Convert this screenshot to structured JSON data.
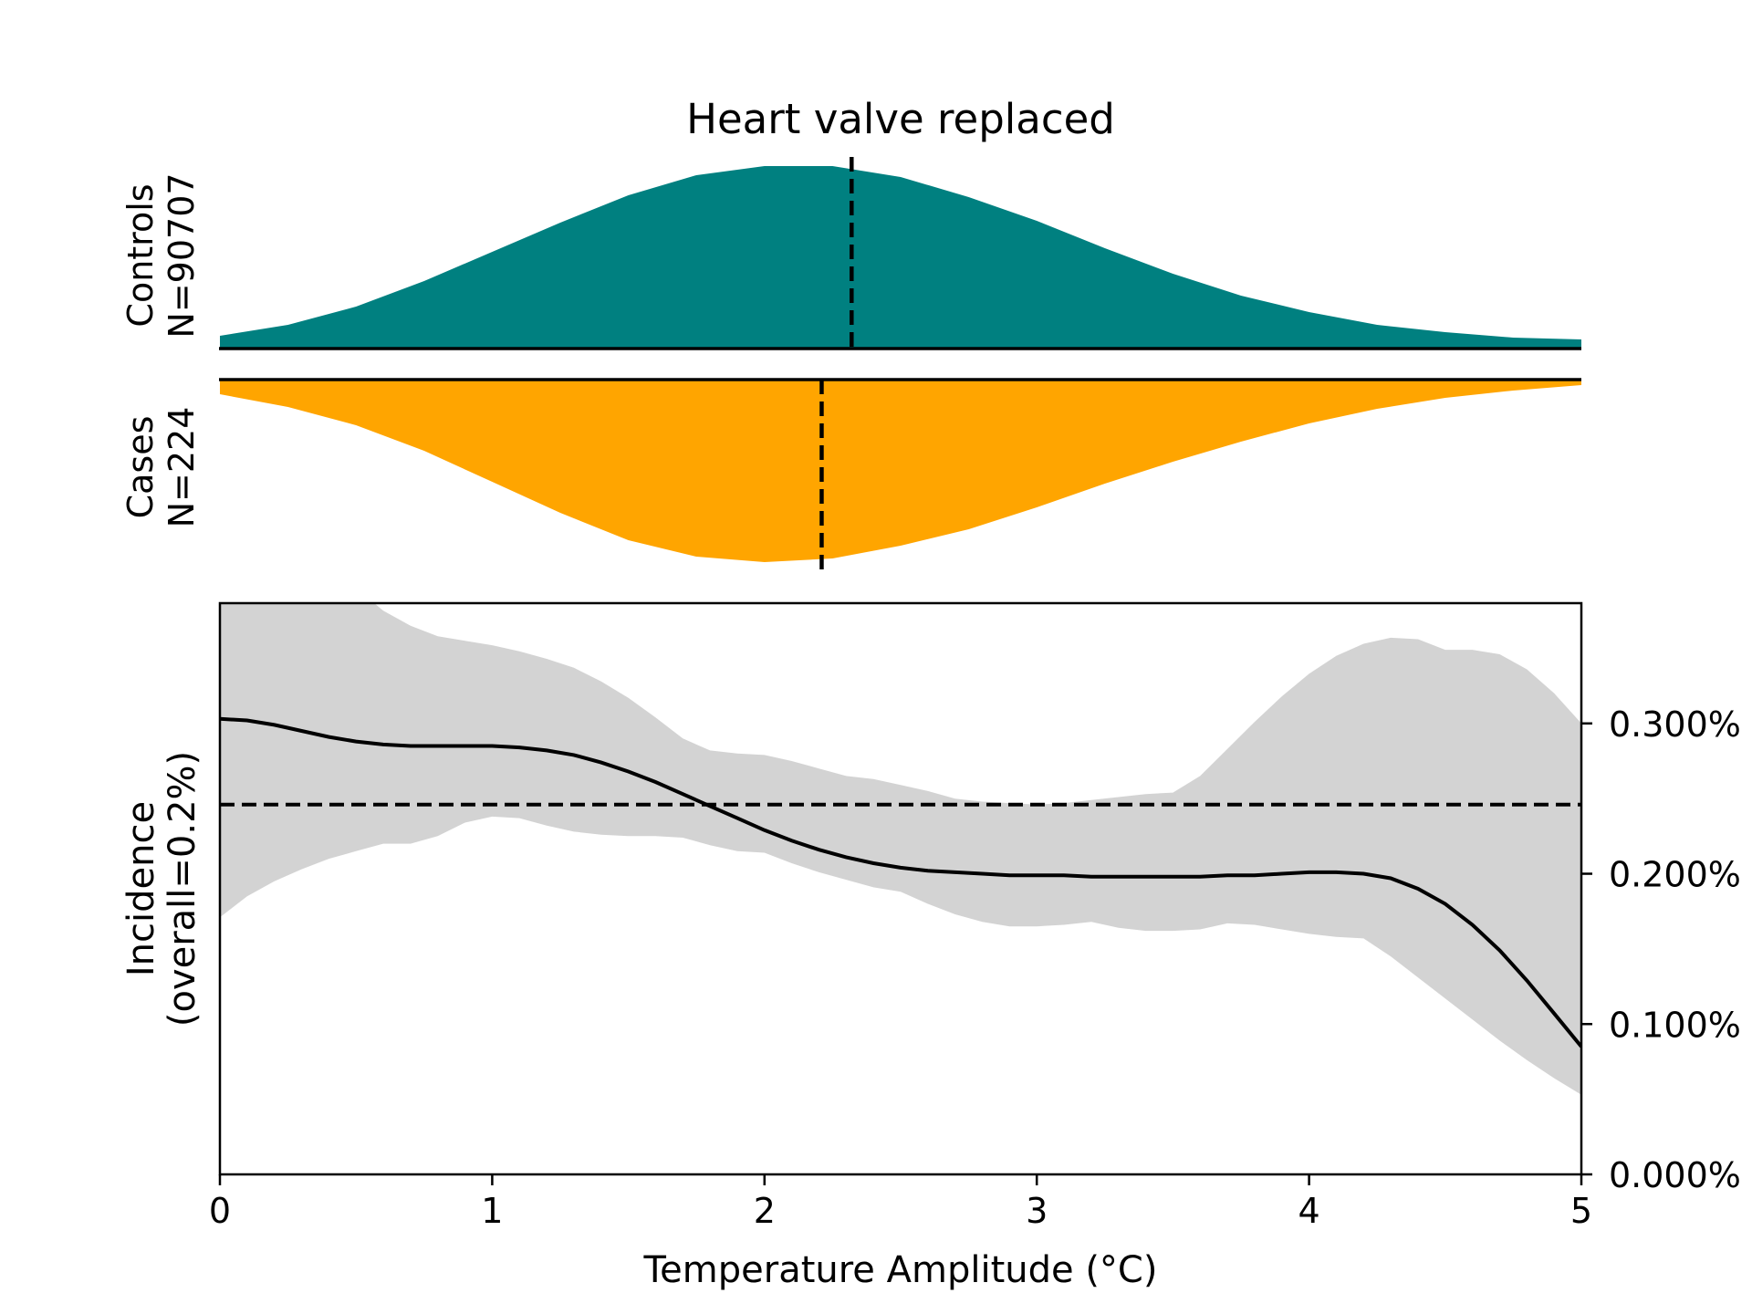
{
  "chart_data": {
    "type": "area",
    "title": "Heart valve replaced",
    "xlabel": "Temperature Amplitude (°C)",
    "xlim": [
      0,
      5
    ],
    "x_ticks": [
      "0",
      "1",
      "2",
      "3",
      "4",
      "5"
    ],
    "colors": {
      "controls": "#008080",
      "cases": "#FFA500",
      "band": "#D3D3D3",
      "line": "#000000"
    },
    "controls": {
      "label": "Controls",
      "n_label": "N=90707",
      "median_x": 2.32,
      "density": {
        "x": [
          0,
          0.25,
          0.5,
          0.75,
          1,
          1.25,
          1.5,
          1.75,
          2,
          2.25,
          2.5,
          2.75,
          3,
          3.25,
          3.5,
          3.75,
          4,
          4.25,
          4.5,
          4.75,
          5
        ],
        "y": [
          0.07,
          0.13,
          0.23,
          0.37,
          0.53,
          0.69,
          0.84,
          0.95,
          1.0,
          1.0,
          0.94,
          0.83,
          0.7,
          0.55,
          0.41,
          0.29,
          0.2,
          0.13,
          0.09,
          0.06,
          0.05
        ]
      }
    },
    "cases": {
      "label": "Cases",
      "n_label": "N=224",
      "median_x": 2.21,
      "density": {
        "x": [
          0,
          0.25,
          0.5,
          0.75,
          1,
          1.25,
          1.5,
          1.75,
          2,
          2.25,
          2.5,
          2.75,
          3,
          3.25,
          3.5,
          3.75,
          4,
          4.25,
          4.5,
          4.75,
          5
        ],
        "y": [
          0.08,
          0.15,
          0.25,
          0.39,
          0.56,
          0.73,
          0.88,
          0.97,
          1.0,
          0.98,
          0.91,
          0.82,
          0.7,
          0.57,
          0.45,
          0.34,
          0.24,
          0.16,
          0.1,
          0.06,
          0.03
        ]
      }
    },
    "incidence": {
      "ylabel_line1": "Incidence",
      "ylabel_line2": "(overall=0.2%)",
      "ylim": [
        0,
        0.0038
      ],
      "y_ticks": [
        {
          "value": 0.0,
          "label": "0.000%"
        },
        {
          "value": 0.001,
          "label": "0.100%"
        },
        {
          "value": 0.002,
          "label": "0.200%"
        },
        {
          "value": 0.003,
          "label": "0.300%"
        }
      ],
      "overall": 0.00246,
      "x": [
        0,
        0.1,
        0.2,
        0.3,
        0.4,
        0.5,
        0.6,
        0.7,
        0.8,
        0.9,
        1.0,
        1.1,
        1.2,
        1.3,
        1.4,
        1.5,
        1.6,
        1.7,
        1.8,
        1.9,
        2.0,
        2.1,
        2.2,
        2.3,
        2.4,
        2.5,
        2.6,
        2.7,
        2.8,
        2.9,
        3.0,
        3.1,
        3.2,
        3.3,
        3.4,
        3.5,
        3.6,
        3.7,
        3.8,
        3.9,
        4.0,
        4.1,
        4.2,
        4.3,
        4.4,
        4.5,
        4.6,
        4.7,
        4.8,
        4.9,
        5.0
      ],
      "mean": [
        0.00303,
        0.00302,
        0.00299,
        0.00295,
        0.00291,
        0.00288,
        0.00286,
        0.00285,
        0.00285,
        0.00285,
        0.00285,
        0.00284,
        0.00282,
        0.00279,
        0.00274,
        0.00268,
        0.00261,
        0.00253,
        0.00245,
        0.00237,
        0.00229,
        0.00222,
        0.00216,
        0.00211,
        0.00207,
        0.00204,
        0.00202,
        0.00201,
        0.002,
        0.00199,
        0.00199,
        0.00199,
        0.00198,
        0.00198,
        0.00198,
        0.00198,
        0.00198,
        0.00199,
        0.00199,
        0.002,
        0.00201,
        0.00201,
        0.002,
        0.00197,
        0.0019,
        0.0018,
        0.00166,
        0.00149,
        0.00129,
        0.00107,
        0.00085
      ],
      "upper": [
        0.0039,
        0.00395,
        0.00395,
        0.00395,
        0.00395,
        0.0039,
        0.00375,
        0.00365,
        0.00358,
        0.00355,
        0.00352,
        0.00348,
        0.00343,
        0.00337,
        0.00328,
        0.00317,
        0.00304,
        0.0029,
        0.00282,
        0.0028,
        0.00279,
        0.00275,
        0.0027,
        0.00265,
        0.00263,
        0.00259,
        0.00255,
        0.0025,
        0.00248,
        0.00247,
        0.00246,
        0.00247,
        0.00249,
        0.00251,
        0.00253,
        0.00254,
        0.00265,
        0.00283,
        0.00301,
        0.00318,
        0.00333,
        0.00345,
        0.00353,
        0.00357,
        0.00356,
        0.00349,
        0.00349,
        0.00346,
        0.00336,
        0.0032,
        0.003
      ],
      "lower": [
        0.00171,
        0.00185,
        0.00195,
        0.00203,
        0.0021,
        0.00215,
        0.0022,
        0.0022,
        0.00225,
        0.00234,
        0.00238,
        0.00237,
        0.00232,
        0.00228,
        0.00226,
        0.00225,
        0.00225,
        0.00224,
        0.00219,
        0.00215,
        0.00214,
        0.00207,
        0.00201,
        0.00196,
        0.00191,
        0.00188,
        0.0018,
        0.00173,
        0.00168,
        0.00165,
        0.00165,
        0.00166,
        0.00168,
        0.00164,
        0.00162,
        0.00162,
        0.00163,
        0.00167,
        0.00166,
        0.00163,
        0.0016,
        0.00158,
        0.00157,
        0.00145,
        0.00131,
        0.00117,
        0.00103,
        0.00089,
        0.00076,
        0.00064,
        0.00053
      ]
    }
  }
}
